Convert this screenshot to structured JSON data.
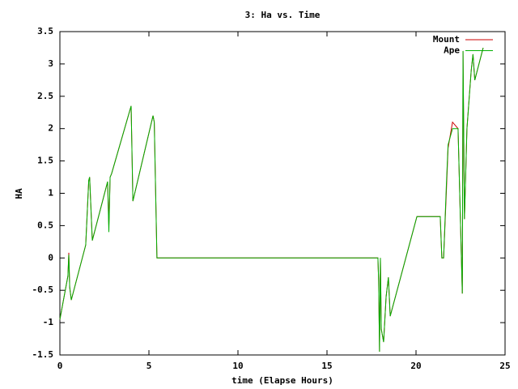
{
  "chart_data": {
    "type": "line",
    "title": "3: Ha vs. Time",
    "x_label": "time (Elapse Hours)",
    "y_label": "HA",
    "x": [
      0,
      0.45,
      0.5,
      0.55,
      0.64,
      1.45,
      1.62,
      1.67,
      1.82,
      2.68,
      2.75,
      2.82,
      2.9,
      4.0,
      4.1,
      5.23,
      5.3,
      5.45,
      17.86,
      17.9,
      17.95,
      18.0,
      18.05,
      18.18,
      18.32,
      18.45,
      18.55,
      20.05,
      21.36,
      21.45,
      21.55,
      21.7,
      21.8,
      22.05,
      22.36,
      22.6,
      22.64,
      22.72,
      22.86,
      23.1,
      23.2,
      23.3,
      23.77
    ],
    "series": [
      {
        "name": "Mount",
        "color": "#cc0000",
        "values": [
          -0.95,
          -0.28,
          0.08,
          -0.45,
          -0.65,
          0.2,
          1.2,
          1.25,
          0.27,
          1.18,
          0.5,
          1.25,
          1.3,
          2.35,
          0.88,
          2.2,
          2.1,
          0,
          0,
          -0.35,
          -1.45,
          0,
          -1.1,
          -1.3,
          -0.6,
          -0.3,
          -0.9,
          0.64,
          0.64,
          0,
          0,
          1.0,
          1.7,
          2.1,
          2.0,
          -0.55,
          3.2,
          0.6,
          2.0,
          2.9,
          3.15,
          2.75,
          3.25
        ]
      },
      {
        "name": "Ape",
        "color": "#00b000",
        "values": [
          -0.95,
          -0.28,
          0.05,
          -0.45,
          -0.65,
          0.2,
          1.2,
          1.25,
          0.27,
          1.18,
          0.4,
          1.25,
          1.3,
          2.35,
          0.88,
          2.2,
          2.1,
          0,
          0,
          -0.35,
          -1.45,
          0,
          -1.1,
          -1.3,
          -0.6,
          -0.3,
          -0.9,
          0.64,
          0.64,
          0,
          0,
          1.1,
          1.75,
          2.0,
          2.0,
          -0.55,
          3.2,
          0.6,
          2.0,
          2.9,
          3.15,
          2.75,
          3.25
        ]
      }
    ],
    "xlim": [
      0,
      25
    ],
    "xticks": [
      0,
      5,
      10,
      15,
      20,
      25
    ],
    "ylim": [
      -1.5,
      3.5
    ],
    "yticks": [
      -1.5,
      -1,
      -0.5,
      0,
      0.5,
      1,
      1.5,
      2,
      2.5,
      3,
      3.5
    ],
    "grid": false,
    "legend": "top-right"
  }
}
